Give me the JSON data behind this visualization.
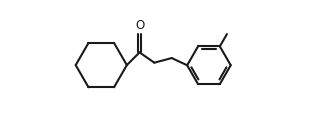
{
  "background_color": "#ffffff",
  "line_color": "#1a1a1a",
  "line_width": 1.5,
  "fig_width": 3.2,
  "fig_height": 1.34,
  "dpi": 100
}
